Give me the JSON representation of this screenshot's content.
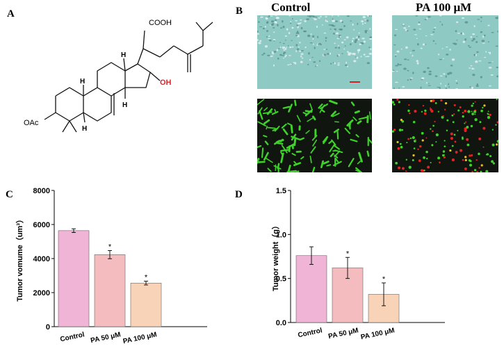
{
  "panels": {
    "a": "A",
    "b": "B",
    "c": "C",
    "d": "D"
  },
  "structure": {
    "cooh": "COOH",
    "oh": "OH",
    "oac": "OAc",
    "h": "H",
    "oh_color": "#e0232a"
  },
  "microscopy": {
    "col_control": "Control",
    "col_pa": "PA 100 μM",
    "brightfield_color": "#8ec9c4",
    "fluor_background": "#101510",
    "live_color": "#3fd22b",
    "dead_color": "#e52222",
    "scalebar_color": "#d0202a"
  },
  "charts": {
    "categories": [
      "Control",
      "PA 50 μM",
      "PA 100 μM"
    ],
    "bar_colors": [
      "#f0b4d6",
      "#f5bcbf",
      "#f8d3b8"
    ]
  },
  "chart_data": [
    {
      "type": "bar",
      "categories": [
        "Control",
        "PA 50 μM",
        "PA 100 μM"
      ],
      "values": [
        5640,
        4230,
        2560
      ],
      "errors": [
        110,
        240,
        110
      ],
      "significance": [
        "",
        "*",
        "*"
      ],
      "ylabel": "Tumor vomume（um³）",
      "ylim": [
        0,
        8000
      ],
      "yticks": [
        0,
        2000,
        4000,
        6000,
        8000
      ],
      "grid": false
    },
    {
      "type": "bar",
      "categories": [
        "Control",
        "PA 50 μM",
        "PA 100 μM"
      ],
      "values": [
        0.76,
        0.62,
        0.32
      ],
      "errors": [
        0.1,
        0.12,
        0.13
      ],
      "significance": [
        "",
        "*",
        "*"
      ],
      "ylabel": "Tumor weight（g）",
      "ylim": [
        0,
        1.5
      ],
      "yticks": [
        "0.0",
        "0.5",
        "1.0",
        "1.5"
      ],
      "grid": false
    }
  ]
}
